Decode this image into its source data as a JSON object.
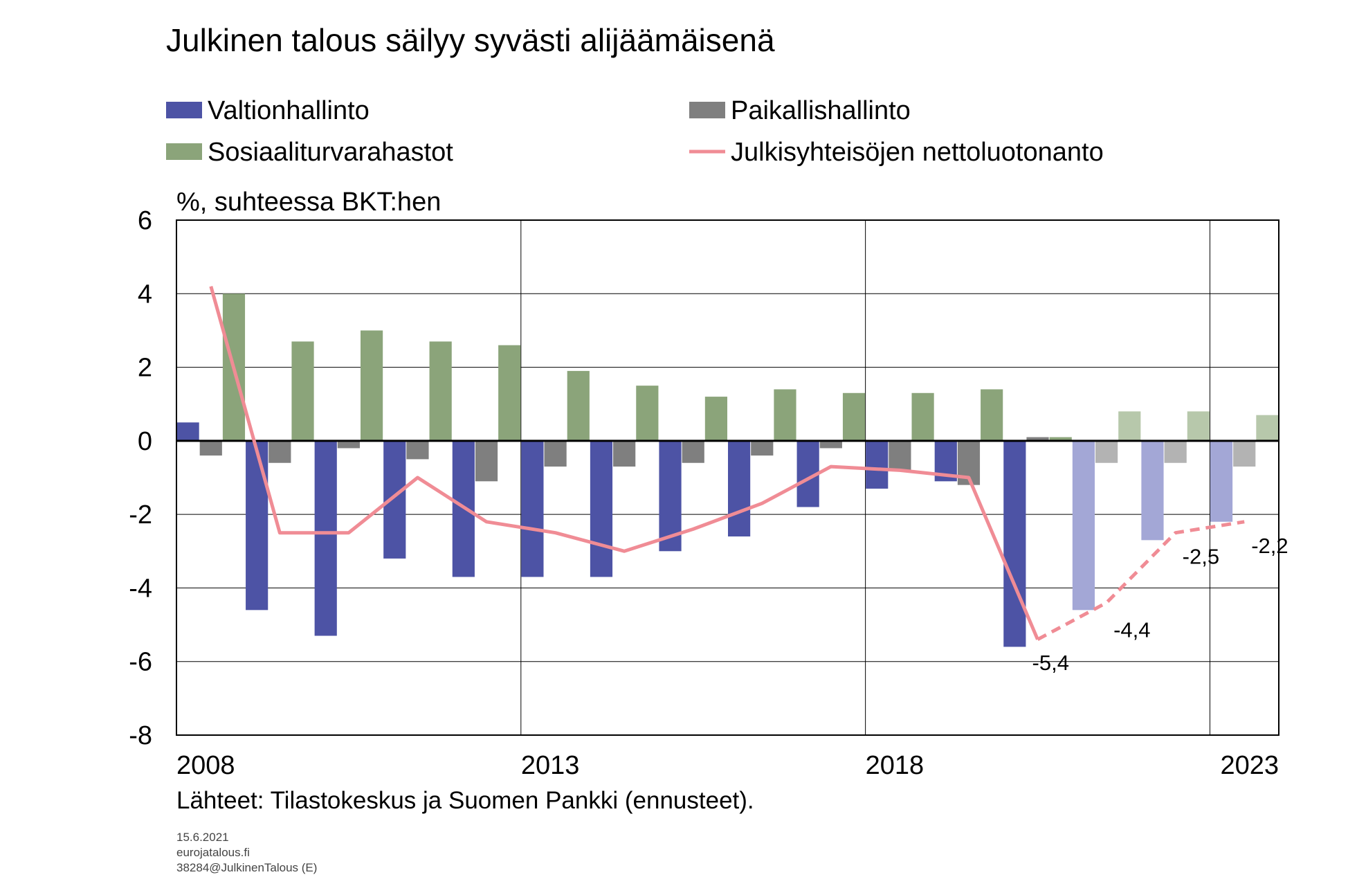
{
  "chart_data": {
    "type": "bar",
    "title": "Julkinen talous säilyy syvästi alijäämäisenä",
    "unit_label": "%, suhteessa BKT:hen",
    "x": [
      2008,
      2009,
      2010,
      2011,
      2012,
      2013,
      2014,
      2015,
      2016,
      2017,
      2018,
      2019,
      2020,
      2021,
      2022,
      2023
    ],
    "x_tick_labels": [
      "2008",
      "2013",
      "2018",
      "2023"
    ],
    "x_tick_values": [
      2008,
      2013,
      2018,
      2023
    ],
    "forecast_from": 2021,
    "ylim": [
      -8,
      6
    ],
    "y_ticks": [
      6,
      4,
      2,
      0,
      -2,
      -4,
      -6,
      -8
    ],
    "grid": true,
    "legend_position": "top",
    "series": [
      {
        "name": "Valtionhallinto",
        "type": "bar",
        "color": "#4d53a5",
        "forecast_color": "#a3a7d6",
        "values": [
          0.5,
          -4.6,
          -5.3,
          -3.2,
          -3.7,
          -3.7,
          -3.7,
          -3.0,
          -2.6,
          -1.8,
          -1.3,
          -1.1,
          -5.6,
          -4.6,
          -2.7,
          -2.2
        ]
      },
      {
        "name": "Paikallishallinto",
        "type": "bar",
        "color": "#7f7f7f",
        "forecast_color": "#b3b3b3",
        "values": [
          -0.4,
          -0.6,
          -0.2,
          -0.5,
          -1.1,
          -0.7,
          -0.7,
          -0.6,
          -0.4,
          -0.2,
          -0.8,
          -1.2,
          0.1,
          -0.6,
          -0.6,
          -0.7
        ]
      },
      {
        "name": "Sosiaaliturvarahastot",
        "type": "bar",
        "color": "#8ba47a",
        "forecast_color": "#b7c8ab",
        "values": [
          4.0,
          2.7,
          3.0,
          2.7,
          2.6,
          1.9,
          1.5,
          1.2,
          1.4,
          1.3,
          1.3,
          1.4,
          0.1,
          0.8,
          0.8,
          0.7
        ]
      },
      {
        "name": "Julkisyhteisöjen nettoluotonanto",
        "type": "line",
        "color": "#f08c95",
        "values": [
          4.2,
          -2.5,
          -2.5,
          -1.0,
          -2.2,
          -2.5,
          -3.0,
          -2.4,
          -1.7,
          -0.7,
          -0.8,
          -1.0,
          -5.4,
          -4.4,
          -2.5,
          -2.2
        ]
      }
    ],
    "data_labels": [
      {
        "year": 2020,
        "text": "-5,4"
      },
      {
        "year": 2021,
        "text": "-4,4"
      },
      {
        "year": 2022,
        "text": "-2,5"
      },
      {
        "year": 2023,
        "text": "-2,2"
      }
    ],
    "source": "Lähteet: Tilastokeskus ja Suomen Pankki (ennusteet).",
    "footer": [
      "15.6.2021",
      "eurojatalous.fi",
      "38284@JulkinenTalous (E)"
    ]
  }
}
